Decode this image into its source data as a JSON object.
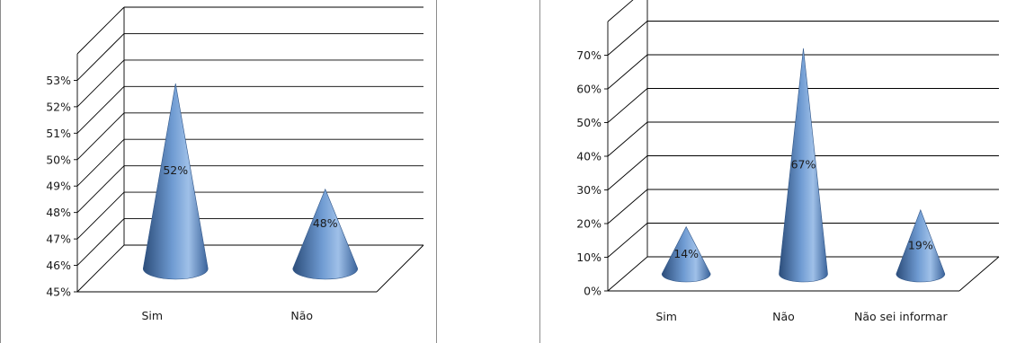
{
  "chart_data": [
    {
      "type": "bar",
      "bar_shape": "cone",
      "categories": [
        "Sim",
        "Não"
      ],
      "values": [
        52,
        48
      ],
      "data_labels": [
        "52%",
        "48%"
      ],
      "y_ticks": [
        "45%",
        "46%",
        "47%",
        "48%",
        "49%",
        "50%",
        "51%",
        "52%",
        "53%"
      ],
      "ylim": [
        45,
        54
      ],
      "y_unit": "%",
      "grid": true,
      "color": "#4f81bd"
    },
    {
      "type": "bar",
      "bar_shape": "cone",
      "categories": [
        "Sim",
        "Não",
        "Não sei informar"
      ],
      "values": [
        14,
        67,
        19
      ],
      "data_labels": [
        "14%",
        "67%",
        "19%"
      ],
      "y_ticks": [
        "0%",
        "10%",
        "20%",
        "30%",
        "40%",
        "50%",
        "60%",
        "70%"
      ],
      "ylim": [
        0,
        80
      ],
      "y_unit": "%",
      "grid": true,
      "color": "#4f81bd"
    }
  ]
}
